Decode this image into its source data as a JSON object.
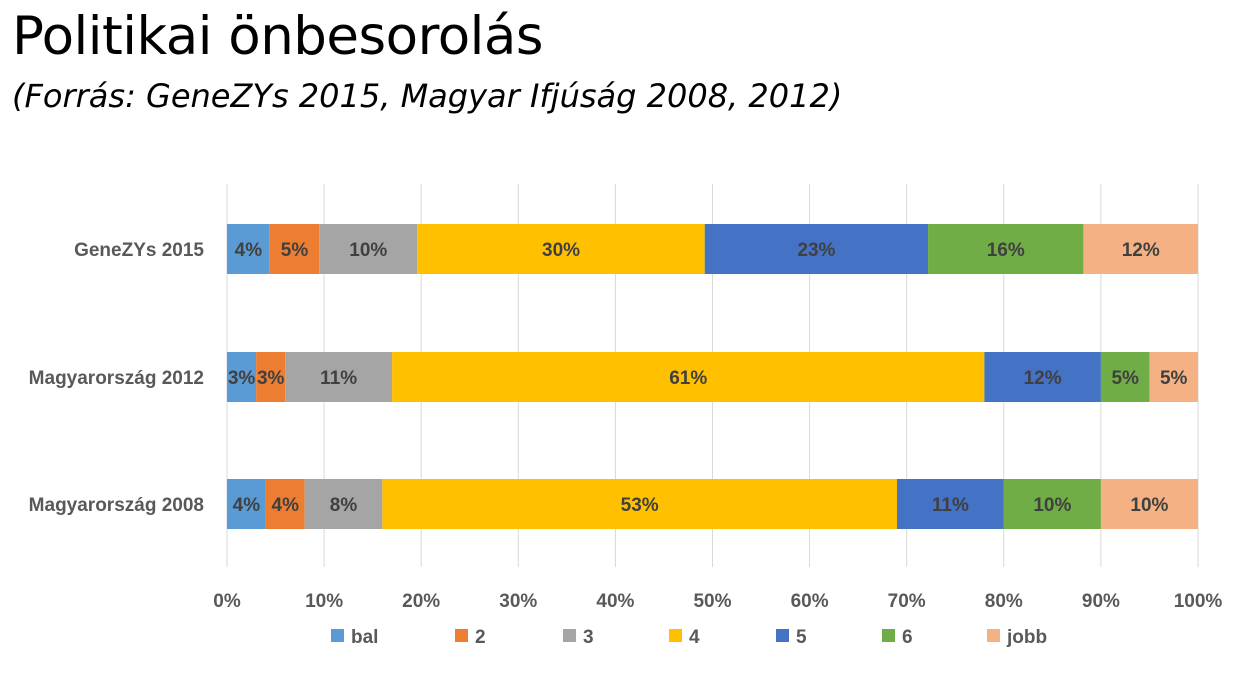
{
  "title": "Politikai önbesorolás",
  "subtitle": "(Forrás: GeneZYs 2015, Magyar Ifjúság 2008, 2012)",
  "chart_data": {
    "type": "bar",
    "orientation": "horizontal",
    "stacking": "percent",
    "categories": [
      "GeneZYs 2015",
      "Magyarország 2012",
      "Magyarország 2008"
    ],
    "series": [
      {
        "name": "bal",
        "color": "#5b9bd5",
        "values": [
          4.4,
          3,
          4
        ],
        "labels": [
          "4%",
          "3%",
          "4%"
        ]
      },
      {
        "name": "2",
        "color": "#ed7d31",
        "values": [
          5.1,
          3,
          4
        ],
        "labels": [
          "5%",
          "3%",
          "4%"
        ]
      },
      {
        "name": "3",
        "color": "#a5a5a5",
        "values": [
          10.1,
          11,
          8
        ],
        "labels": [
          "10%",
          "11%",
          "8%"
        ]
      },
      {
        "name": "4",
        "color": "#ffc000",
        "values": [
          29.6,
          61,
          53
        ],
        "labels": [
          "30%",
          "61%",
          "53%"
        ]
      },
      {
        "name": "5",
        "color": "#4472c4",
        "values": [
          23,
          12,
          11
        ],
        "labels": [
          "23%",
          "12%",
          "11%"
        ]
      },
      {
        "name": "6",
        "color": "#70ad47",
        "values": [
          16,
          5,
          10
        ],
        "labels": [
          "16%",
          "5%",
          "10%"
        ]
      },
      {
        "name": "jobb",
        "color": "#f4b183",
        "values": [
          11.8,
          5,
          10
        ],
        "labels": [
          "12%",
          "5%",
          "10%"
        ]
      }
    ],
    "xlim": [
      0,
      100
    ],
    "xticks": [
      "0%",
      "10%",
      "20%",
      "30%",
      "40%",
      "50%",
      "60%",
      "70%",
      "80%",
      "90%",
      "100%"
    ],
    "grid": "vertical",
    "legend": "bottom",
    "label_color": "#404040",
    "axis_text_color": "#595959",
    "grid_color": "#d9d9d9"
  }
}
